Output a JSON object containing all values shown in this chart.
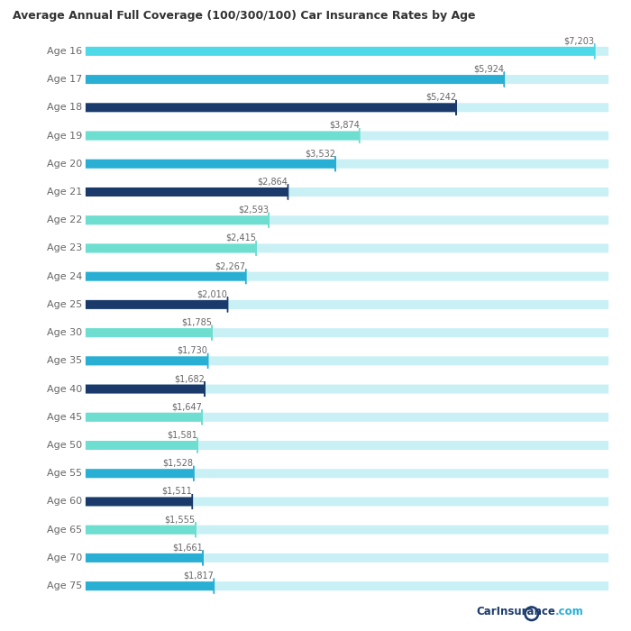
{
  "title": "Average Annual Full Coverage (100/300/100) Car Insurance Rates by Age",
  "ages": [
    "Age 16",
    "Age 17",
    "Age 18",
    "Age 19",
    "Age 20",
    "Age 21",
    "Age 22",
    "Age 23",
    "Age 24",
    "Age 25",
    "Age 30",
    "Age 35",
    "Age 40",
    "Age 45",
    "Age 50",
    "Age 55",
    "Age 60",
    "Age 65",
    "Age 70",
    "Age 75"
  ],
  "values": [
    7203,
    5924,
    5242,
    3874,
    3532,
    2864,
    2593,
    2415,
    2267,
    2010,
    1785,
    1730,
    1682,
    1647,
    1581,
    1528,
    1511,
    1555,
    1661,
    1817
  ],
  "max_value": 7400,
  "bar_colors": [
    "#4dd9e8",
    "#29afd4",
    "#1a3a6b",
    "#6ddecf",
    "#29afd4",
    "#1a3a6b",
    "#6ddecf",
    "#6ddecf",
    "#29afd4",
    "#1a3a6b",
    "#6ddecf",
    "#29afd4",
    "#1a3a6b",
    "#6ddecf",
    "#6ddecf",
    "#29afd4",
    "#1a3a6b",
    "#6ddecf",
    "#29afd4",
    "#29afd4"
  ],
  "bg_bar_color": "#c8f0f5",
  "label_color": "#666666",
  "title_color": "#333333",
  "background_color": "#ffffff",
  "watermark": "CarInsurance",
  "watermark2": ".com"
}
